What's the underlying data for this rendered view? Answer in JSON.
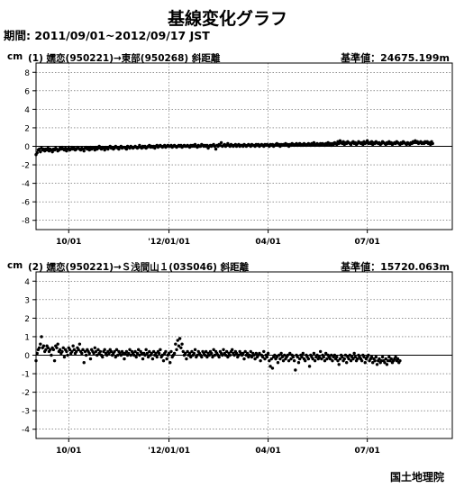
{
  "title": "基線変化グラフ",
  "period": "期間: 2011/09/01~2012/09/17 JST",
  "organization": "国土地理院",
  "chart_data": [
    {
      "type": "scatter",
      "unit_label": "cm",
      "caption": "(1)  嬬恋(950221)→東部(950268)   斜距離",
      "reference": "基準値：24675.199m",
      "ylim": [
        -9,
        9
      ],
      "yticks": [
        -8,
        -6,
        -4,
        -2,
        0,
        2,
        4,
        6,
        8
      ],
      "xlim": [
        "2011-09-01",
        "2012-09-17"
      ],
      "xticks": [
        {
          "date": "2011-10-01",
          "label": "10/01"
        },
        {
          "date": "2012-01-01",
          "label": "'12/01/01"
        },
        {
          "date": "2012-04-01",
          "label": "04/01"
        },
        {
          "date": "2012-07-01",
          "label": "07/01"
        }
      ],
      "grid": true,
      "series": [
        {
          "start": "2011-09-01",
          "interval_days": 1,
          "y": [
            -0.9,
            -0.7,
            -0.4,
            -0.3,
            -0.6,
            -0.2,
            -0.4,
            -0.3,
            -0.5,
            -0.3,
            -0.4,
            -0.2,
            -0.5,
            -0.3,
            -0.4,
            -0.6,
            -0.3,
            -0.4,
            -0.2,
            -0.3,
            -0.5,
            -0.4,
            -0.2,
            -0.3,
            -0.1,
            -0.3,
            -0.4,
            -0.2,
            -0.5,
            -0.3,
            -0.2,
            -0.4,
            -0.3,
            -0.1,
            -0.3,
            -0.2,
            -0.4,
            -0.3,
            -0.1,
            -0.2,
            -0.3,
            -0.4,
            -0.2,
            -0.3,
            -0.5,
            -0.2,
            -0.1,
            -0.3,
            -0.2,
            -0.4,
            -0.1,
            -0.3,
            -0.2,
            -0.2,
            -0.4,
            -0.1,
            -0.3,
            -0.2,
            0.0,
            -0.2,
            -0.3,
            -0.1,
            -0.2,
            -0.4,
            -0.1,
            -0.2,
            -0.3,
            -0.1,
            0.0,
            -0.2,
            -0.1,
            -0.3,
            -0.2,
            0.0,
            -0.1,
            -0.2,
            -0.3,
            -0.1,
            0.0,
            -0.2,
            -0.1,
            -0.1,
            -0.2,
            -0.3,
            0.0,
            -0.1,
            -0.2,
            0.0,
            -0.1,
            -0.2,
            -0.1,
            0.0,
            -0.1,
            -0.2,
            -0.1,
            0.1,
            -0.1,
            -0.2,
            0.0,
            -0.1,
            0.0,
            -0.2,
            -0.1,
            0.0,
            0.1,
            -0.1,
            0.0,
            -0.1,
            0.0,
            -0.2,
            0.0,
            0.1,
            -0.1,
            0.0,
            0.1,
            0.0,
            -0.1,
            0.0,
            0.1,
            -0.1,
            0.0,
            0.1,
            0.0,
            0.0,
            0.1,
            -0.1,
            0.0,
            0.1,
            0.0,
            -0.1,
            0.0,
            0.1,
            0.0,
            0.1,
            -0.1,
            0.0,
            0.1,
            0.0,
            0.0,
            0.1,
            0.0,
            -0.1,
            0.1,
            0.0,
            0.1,
            0.0,
            0.2,
            0.0,
            -0.1,
            0.1,
            0.0,
            0.0,
            0.2,
            0.1,
            0.0,
            0.1,
            0.0,
            0.1,
            -0.2,
            0.0,
            0.1,
            0.0,
            0.1,
            0.2,
            0.0,
            -0.3,
            0.1,
            0.0,
            0.2,
            0.1,
            0.4,
            0.0,
            0.1,
            0.2,
            0.0,
            0.1,
            0.3,
            0.1,
            0.0,
            0.2,
            0.1,
            0.0,
            0.1,
            0.2,
            0.0,
            0.1,
            0.2,
            0.0,
            0.1,
            0.1,
            0.0,
            0.2,
            0.1,
            0.0,
            0.1,
            0.2,
            0.1,
            0.0,
            0.2,
            0.1,
            0.1,
            0.0,
            0.2,
            0.1,
            0.2,
            0.0,
            0.1,
            0.2,
            0.1,
            0.0,
            0.2,
            0.1,
            0.2,
            0.1,
            0.0,
            0.2,
            0.1,
            0.2,
            0.0,
            0.1,
            0.2,
            0.3,
            0.1,
            0.2,
            0.0,
            0.2,
            0.1,
            0.2,
            0.1,
            0.3,
            0.1,
            0.2,
            0.0,
            0.2,
            0.1,
            0.3,
            0.2,
            0.1,
            0.2,
            0.3,
            0.1,
            0.2,
            0.3,
            0.1,
            0.2,
            0.1,
            0.3,
            0.2,
            0.1,
            0.2,
            0.3,
            0.2,
            0.1,
            0.3,
            0.2,
            0.4,
            0.1,
            0.2,
            0.3,
            0.2,
            0.1,
            0.3,
            0.2,
            0.3,
            0.2,
            0.1,
            0.3,
            0.2,
            0.4,
            0.2,
            0.3,
            0.1,
            0.3,
            0.2,
            0.4,
            0.3,
            0.2,
            0.5,
            0.3,
            0.6,
            0.4,
            0.3,
            0.5,
            0.2,
            0.4,
            0.3,
            0.5,
            0.4,
            0.3,
            0.2,
            0.4,
            0.5,
            0.3,
            0.4,
            0.2,
            0.3,
            0.5,
            0.4,
            0.3,
            0.4,
            0.2,
            0.5,
            0.3,
            0.4,
            0.6,
            0.3,
            0.4,
            0.3,
            0.5,
            0.2,
            0.4,
            0.3,
            0.5,
            0.4,
            0.3,
            0.4,
            0.2,
            0.3,
            0.5,
            0.4,
            0.3,
            0.2,
            0.4,
            0.3,
            0.5,
            0.3,
            0.4,
            0.2,
            0.3,
            0.4,
            0.3,
            0.5,
            0.4,
            0.3,
            0.2,
            0.4,
            0.3,
            0.5,
            0.4,
            0.3,
            0.2,
            0.4,
            0.3,
            0.2,
            0.4,
            0.3,
            0.5,
            0.4,
            0.6,
            0.4,
            0.5,
            0.3,
            0.4,
            0.5,
            0.3,
            0.4,
            0.3,
            0.5,
            0.4,
            0.5,
            0.3,
            0.4,
            0.2,
            0.5,
            0.3
          ]
        }
      ]
    },
    {
      "type": "scatter",
      "unit_label": "cm",
      "caption": "(2)  嬬恋(950221)→Ｓ浅間山１(03S046)   斜距離",
      "reference": "基準値：15720.063m",
      "ylim": [
        -4.5,
        4.5
      ],
      "yticks": [
        -4,
        -3,
        -2,
        -1,
        0,
        1,
        2,
        3,
        4
      ],
      "xlim": [
        "2011-09-01",
        "2012-09-17"
      ],
      "xticks": [
        {
          "date": "2011-10-01",
          "label": "10/01"
        },
        {
          "date": "2012-01-01",
          "label": "'12/01/01"
        },
        {
          "date": "2012-04-01",
          "label": "04/01"
        },
        {
          "date": "2012-07-01",
          "label": "07/01"
        }
      ],
      "grid": true,
      "series": [
        {
          "start": "2011-09-01",
          "interval_days": 1,
          "y": [
            -0.3,
            0.1,
            0.3,
            0.4,
            0.6,
            1.0,
            0.4,
            0.5,
            0.2,
            0.3,
            0.5,
            0.4,
            0.2,
            0.3,
            0.0,
            0.4,
            0.3,
            -0.3,
            0.5,
            0.4,
            0.6,
            0.2,
            0.3,
            0.1,
            0.2,
            0.4,
            -0.1,
            0.3,
            0.2,
            0.0,
            0.4,
            0.3,
            0.1,
            0.2,
            0.5,
            0.3,
            0.1,
            0.2,
            0.4,
            0.3,
            0.6,
            0.2,
            0.1,
            0.3,
            -0.4,
            0.2,
            0.0,
            0.3,
            0.2,
            0.1,
            -0.2,
            0.3,
            0.2,
            0.1,
            0.4,
            0.2,
            0.0,
            0.3,
            0.1,
            0.2,
            0.0,
            -0.1,
            0.2,
            0.3,
            0.1,
            0.0,
            0.2,
            0.1,
            0.3,
            0.2,
            0.0,
            0.1,
            0.2,
            -0.1,
            0.3,
            0.0,
            0.2,
            0.1,
            0.0,
            0.2,
            0.1,
            -0.2,
            0.1,
            0.2,
            0.0,
            0.1,
            0.3,
            0.0,
            0.2,
            0.1,
            0.0,
            0.2,
            -0.1,
            0.1,
            0.3,
            0.0,
            0.2,
            0.1,
            -0.2,
            0.1,
            0.0,
            0.3,
            0.1,
            -0.1,
            0.2,
            0.0,
            0.1,
            -0.2,
            0.2,
            0.0,
            0.1,
            -0.1,
            0.2,
            0.1,
            0.3,
            -0.1,
            0.0,
            -0.3,
            0.1,
            0.2,
            -0.2,
            0.0,
            0.1,
            -0.4,
            0.2,
            -0.1,
            0.0,
            0.1,
            0.6,
            0.3,
            0.8,
            0.5,
            0.9,
            0.4,
            0.6,
            0.2,
            0.0,
            0.1,
            -0.2,
            0.2,
            0.0,
            0.1,
            -0.1,
            0.2,
            0.0,
            0.1,
            0.3,
            -0.1,
            0.0,
            0.2,
            0.1,
            0.0,
            -0.1,
            0.2,
            0.1,
            0.0,
            0.2,
            -0.1,
            0.1,
            0.0,
            0.2,
            0.1,
            -0.1,
            0.3,
            0.0,
            0.2,
            0.1,
            0.0,
            -0.1,
            0.2,
            0.1,
            0.0,
            0.3,
            0.1,
            0.0,
            0.2,
            -0.1,
            0.1,
            0.0,
            0.2,
            0.3,
            0.1,
            0.0,
            0.2,
            0.1,
            -0.1,
            0.0,
            0.2,
            0.1,
            0.0,
            0.1,
            -0.2,
            0.2,
            0.0,
            0.1,
            -0.1,
            0.0,
            0.2,
            -0.1,
            0.1,
            0.0,
            -0.2,
            0.1,
            -0.1,
            0.0,
            0.1,
            -0.3,
            0.0,
            -0.1,
            0.2,
            -0.2,
            0.0,
            -0.1,
            0.1,
            -0.3,
            -0.6,
            -0.2,
            -0.7,
            -0.1,
            0.0,
            -0.2,
            -0.1,
            -0.4,
            0.0,
            -0.2,
            0.1,
            -0.1,
            -0.3,
            0.0,
            -0.2,
            -0.1,
            0.0,
            -0.3,
            0.1,
            -0.2,
            0.0,
            -0.1,
            -0.3,
            -0.8,
            0.0,
            -0.1,
            -0.4,
            -0.2,
            0.0,
            -0.1,
            0.1,
            -0.2,
            -0.3,
            0.0,
            -0.1,
            -0.2,
            -0.6,
            0.0,
            -0.1,
            -0.2,
            0.1,
            -0.3,
            -0.1,
            0.0,
            -0.2,
            -0.1,
            0.2,
            -0.2,
            0.0,
            -0.1,
            -0.3,
            0.1,
            -0.2,
            0.0,
            -0.1,
            -0.2,
            0.0,
            -0.3,
            -0.1,
            0.0,
            -0.2,
            -0.1,
            -0.3,
            -0.5,
            -0.2,
            0.0,
            -0.1,
            -0.3,
            -0.2,
            0.0,
            -0.4,
            -0.1,
            -0.2,
            0.0,
            -0.3,
            -0.1,
            -0.2,
            0.1,
            -0.1,
            -0.3,
            -0.2,
            0.0,
            -0.1,
            -0.2,
            -0.3,
            0.0,
            -0.1,
            -0.4,
            -0.2,
            -0.1,
            0.0,
            -0.3,
            -0.2,
            -0.1,
            -0.4,
            -0.2,
            -0.3,
            -0.1,
            -0.5,
            -0.3,
            -0.2,
            -0.4,
            -0.3,
            -0.1,
            -0.3,
            -0.4,
            -0.2,
            -0.5,
            -0.3,
            -0.1,
            -0.3,
            -0.2,
            -0.4,
            -0.3,
            -0.2,
            -0.1,
            -0.3,
            -0.2,
            -0.4,
            -0.3
          ]
        }
      ]
    }
  ]
}
